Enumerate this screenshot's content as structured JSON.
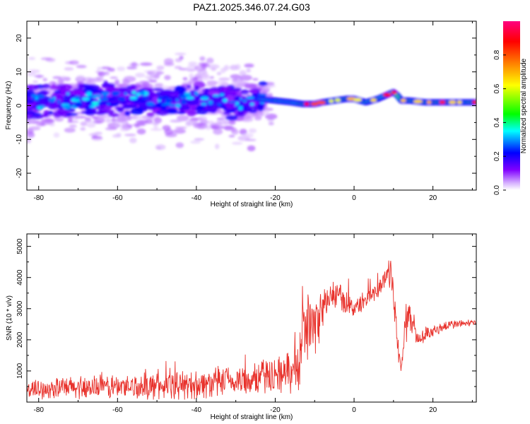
{
  "chart_data": [
    {
      "type": "heatmap",
      "title": "PAZ1.2025.346.07.24.G03",
      "xlabel": "Height of straight line (km)",
      "ylabel": "Frequency (Hz)",
      "xlim": [
        -83,
        31
      ],
      "ylim": [
        -25,
        25
      ],
      "x_ticks": [
        -80,
        -60,
        -40,
        -20,
        0,
        20
      ],
      "y_ticks": [
        -20,
        -10,
        0,
        10,
        20
      ],
      "colorbar": {
        "label": "Normalized spectral amplitude",
        "range": [
          0.0,
          1.0
        ],
        "ticks": [
          0.0,
          0.2,
          0.4,
          0.6,
          0.8
        ],
        "tick_labels": [
          "0.0",
          "0.2",
          "0.4",
          "0.6",
          "0.8"
        ],
        "colormap": [
          "#ffffff",
          "#8000ff",
          "#0000ff",
          "#00ffff",
          "#00ff00",
          "#ffff00",
          "#ff8000",
          "#ff0000",
          "#ff0080"
        ]
      },
      "ridge": {
        "x": [
          -83,
          -75,
          -65,
          -55,
          -45,
          -35,
          -28,
          -24,
          -20,
          -16,
          -13,
          -10,
          -8,
          -5,
          -2,
          0,
          3,
          6,
          8,
          10,
          11,
          12,
          14,
          18,
          22,
          26,
          31
        ],
        "y": [
          1,
          1.5,
          1.8,
          2,
          1.8,
          1.5,
          1,
          2,
          1.5,
          1,
          0.5,
          0.5,
          1,
          1.5,
          2,
          2,
          1,
          2,
          3,
          4,
          3,
          1.5,
          1.5,
          1,
          1,
          1,
          1
        ]
      }
    },
    {
      "type": "line",
      "xlabel": "Height of straight line (km)",
      "ylabel": "SNR (10 * v/v)",
      "xlim": [
        -83,
        31
      ],
      "ylim": [
        0,
        5400
      ],
      "x_ticks": [
        -80,
        -60,
        -40,
        -20,
        0,
        20
      ],
      "y_ticks": [
        1000,
        2000,
        3000,
        4000,
        5000
      ],
      "color": "#e8312b",
      "envelope": {
        "x": [
          -83,
          -75,
          -60,
          -45,
          -30,
          -20,
          -14,
          -13,
          -12,
          -10,
          -8,
          -5,
          -2,
          0,
          3,
          6,
          8,
          9,
          10,
          11,
          12,
          13,
          14,
          16,
          20,
          25,
          31
        ],
        "mean": [
          400,
          450,
          500,
          520,
          650,
          900,
          1000,
          3000,
          2500,
          2400,
          3000,
          3500,
          3200,
          3000,
          3300,
          3600,
          4000,
          4300,
          3600,
          1800,
          1100,
          2500,
          2800,
          2000,
          2300,
          2500,
          2550
        ],
        "amp": [
          250,
          350,
          400,
          450,
          500,
          600,
          700,
          1200,
          1200,
          900,
          700,
          500,
          400,
          300,
          300,
          300,
          400,
          700,
          600,
          500,
          200,
          700,
          600,
          250,
          200,
          150,
          100
        ]
      }
    }
  ]
}
